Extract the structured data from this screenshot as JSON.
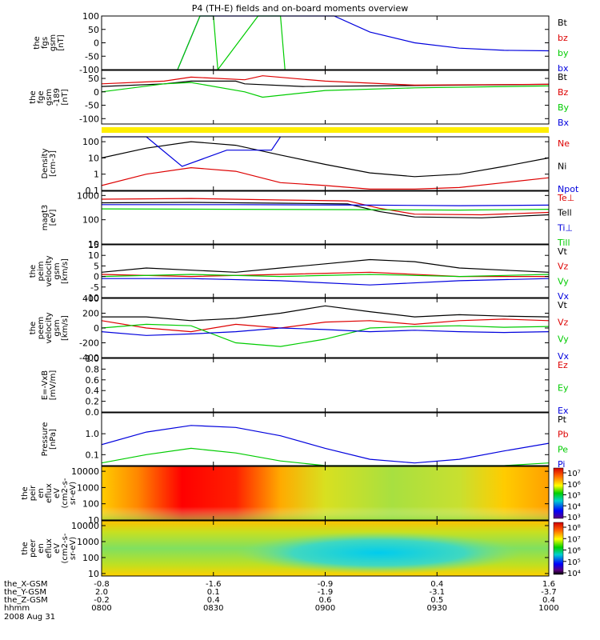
{
  "title": "P4 (TH-E) fields and on-board moments overview",
  "colors": {
    "black": "#000000",
    "red": "#dd0000",
    "green": "#00cc00",
    "blue": "#0000dd",
    "yellow": "#ffee00"
  },
  "chart_data": [
    {
      "type": "line",
      "name": "fgs",
      "ylabel_lines": [
        "the",
        "fgs",
        "gsm",
        "[nT]"
      ],
      "ylim": [
        -100,
        100
      ],
      "yticks": [
        "100",
        "50",
        "0",
        "-50",
        "-100"
      ],
      "legend": [
        {
          "label": "Bt",
          "color": "#000000"
        },
        {
          "label": "bz",
          "color": "#dd0000"
        },
        {
          "label": "by",
          "color": "#00cc00"
        },
        {
          "label": "bx",
          "color": "#0000dd"
        }
      ],
      "series": [
        {
          "name": "bx",
          "color": "#0000dd",
          "x": [
            0.17,
            0.22,
            0.4,
            0.45,
            0.52,
            0.6,
            0.7,
            0.8,
            0.9,
            1.0
          ],
          "y": [
            -100,
            100,
            100,
            100,
            100,
            40,
            0,
            -20,
            -28,
            -30
          ]
        },
        {
          "name": "by",
          "color": "#00cc00",
          "x": [
            0.17,
            0.22,
            0.25,
            0.26,
            0.35,
            0.4,
            0.41
          ],
          "y": [
            -100,
            100,
            100,
            -100,
            100,
            100,
            -100
          ]
        }
      ]
    },
    {
      "type": "line",
      "name": "fge",
      "ylabel_lines": [
        "the",
        "fge",
        "gsm",
        "-189",
        "[nT]"
      ],
      "ylim": [
        -120,
        80
      ],
      "yticks": [
        "50",
        "0",
        "-50",
        "-100"
      ],
      "legend": [
        {
          "label": "Bt",
          "color": "#000000"
        },
        {
          "label": "Bz",
          "color": "#dd0000"
        },
        {
          "label": "By",
          "color": "#00cc00"
        },
        {
          "label": "Bx",
          "color": "#0000dd"
        }
      ],
      "series": [
        {
          "name": "Bt",
          "color": "#000000",
          "x": [
            0.0,
            0.14,
            0.2,
            0.3,
            0.32,
            0.45,
            0.6,
            0.8,
            1.0
          ],
          "y": [
            20,
            30,
            40,
            40,
            30,
            20,
            22,
            25,
            28
          ]
        },
        {
          "name": "Bz",
          "color": "#dd0000",
          "x": [
            0.0,
            0.14,
            0.2,
            0.32,
            0.36,
            0.5,
            0.7,
            1.0
          ],
          "y": [
            30,
            40,
            55,
            45,
            60,
            40,
            25,
            28
          ]
        },
        {
          "name": "By",
          "color": "#00cc00",
          "x": [
            0.0,
            0.14,
            0.2,
            0.32,
            0.36,
            0.5,
            0.7,
            1.0
          ],
          "y": [
            0,
            30,
            35,
            0,
            -20,
            5,
            15,
            22
          ]
        }
      ]
    },
    {
      "type": "line",
      "name": "density",
      "ylabel_lines": [
        "Density",
        "[cm-3]"
      ],
      "yscale": "log",
      "ylim": [
        0.1,
        200
      ],
      "yticks": [
        "100",
        "10",
        "1",
        "0.1"
      ],
      "legend": [
        {
          "label": "Ne",
          "color": "#dd0000"
        },
        {
          "label": "Ni",
          "color": "#000000"
        },
        {
          "label": "Npot",
          "color": "#0000dd"
        }
      ],
      "series": [
        {
          "name": "Ni",
          "color": "#000000",
          "x": [
            0.0,
            0.1,
            0.2,
            0.3,
            0.4,
            0.5,
            0.6,
            0.7,
            0.8,
            0.9,
            1.0
          ],
          "y": [
            10,
            40,
            100,
            60,
            15,
            4,
            1.2,
            0.7,
            1.0,
            3,
            10
          ]
        },
        {
          "name": "Ne",
          "color": "#dd0000",
          "x": [
            0.0,
            0.1,
            0.2,
            0.3,
            0.4,
            0.5,
            0.6,
            0.7,
            0.8,
            0.9,
            1.0
          ],
          "y": [
            0.2,
            1.0,
            2.5,
            1.5,
            0.3,
            0.2,
            0.12,
            0.12,
            0.15,
            0.3,
            0.6
          ]
        },
        {
          "name": "Npot",
          "color": "#0000dd",
          "x": [
            0.0,
            0.1,
            0.18,
            0.28,
            0.38,
            0.4
          ],
          "y": [
            200,
            200,
            3,
            30,
            30,
            200
          ]
        }
      ]
    },
    {
      "type": "line",
      "name": "temperature",
      "ylabel_lines": [
        "magt3",
        "[eV]"
      ],
      "yscale": "log",
      "ylim": [
        10,
        1500
      ],
      "yticks": [
        "1000",
        "100",
        "10"
      ],
      "legend": [
        {
          "label": "Te⊥",
          "color": "#dd0000"
        },
        {
          "label": "Tell",
          "color": "#000000"
        },
        {
          "label": "Ti⊥",
          "color": "#0000dd"
        },
        {
          "label": "Till",
          "color": "#00cc00"
        }
      ],
      "series": [
        {
          "name": "Te⊥",
          "color": "#dd0000",
          "x": [
            0.0,
            0.2,
            0.4,
            0.55,
            0.62,
            0.7,
            0.85,
            1.0
          ],
          "y": [
            700,
            750,
            650,
            600,
            300,
            170,
            160,
            200
          ]
        },
        {
          "name": "Tell",
          "color": "#000000",
          "x": [
            0.0,
            0.2,
            0.4,
            0.55,
            0.62,
            0.7,
            0.85,
            1.0
          ],
          "y": [
            500,
            520,
            480,
            450,
            220,
            130,
            120,
            160
          ]
        },
        {
          "name": "Ti⊥",
          "color": "#0000dd",
          "x": [
            0.0,
            0.3,
            0.6,
            0.8,
            1.0
          ],
          "y": [
            420,
            420,
            400,
            380,
            400
          ]
        },
        {
          "name": "Till",
          "color": "#00cc00",
          "x": [
            0.0,
            0.3,
            0.6,
            0.8,
            1.0
          ],
          "y": [
            280,
            270,
            260,
            250,
            270
          ]
        }
      ]
    },
    {
      "type": "line",
      "name": "peim-velocity",
      "ylabel_lines": [
        "the",
        "peim",
        "velocity",
        "gsm",
        "[km/s]"
      ],
      "ylim": [
        -10,
        15
      ],
      "yticks": [
        "15",
        "10",
        "5",
        "0",
        "-5",
        "-10"
      ],
      "legend": [
        {
          "label": "Vt",
          "color": "#000000"
        },
        {
          "label": "Vz",
          "color": "#dd0000"
        },
        {
          "label": "Vy",
          "color": "#00cc00"
        },
        {
          "label": "Vx",
          "color": "#0000dd"
        }
      ],
      "series": [
        {
          "name": "Vt",
          "color": "#000000",
          "x": [
            0.0,
            0.1,
            0.2,
            0.3,
            0.4,
            0.5,
            0.6,
            0.7,
            0.8,
            0.9,
            1.0
          ],
          "y": [
            2,
            4,
            3,
            2,
            4,
            6,
            8,
            7,
            4,
            3,
            2
          ]
        },
        {
          "name": "Vz",
          "color": "#dd0000",
          "x": [
            0.0,
            0.2,
            0.4,
            0.6,
            0.8,
            1.0
          ],
          "y": [
            1,
            0,
            1,
            2,
            0,
            0
          ]
        },
        {
          "name": "Vy",
          "color": "#00cc00",
          "x": [
            0.0,
            0.2,
            0.4,
            0.6,
            0.8,
            1.0
          ],
          "y": [
            0,
            1,
            0,
            1,
            0,
            1
          ]
        },
        {
          "name": "Vx",
          "color": "#0000dd",
          "x": [
            0.0,
            0.2,
            0.4,
            0.6,
            0.8,
            1.0
          ],
          "y": [
            -1,
            -1,
            -2,
            -4,
            -2,
            -1
          ]
        }
      ]
    },
    {
      "type": "line",
      "name": "peem-velocity",
      "ylabel_lines": [
        "the",
        "peem",
        "velocity",
        "gsm",
        "[km/s]"
      ],
      "ylim": [
        -400,
        400
      ],
      "yticks": [
        "400",
        "200",
        "0",
        "-200",
        "-400"
      ],
      "legend": [
        {
          "label": "Vt",
          "color": "#000000"
        },
        {
          "label": "Vz",
          "color": "#dd0000"
        },
        {
          "label": "Vy",
          "color": "#00cc00"
        },
        {
          "label": "Vx",
          "color": "#0000dd"
        }
      ],
      "series": [
        {
          "name": "Vt",
          "color": "#000000",
          "x": [
            0.0,
            0.1,
            0.2,
            0.3,
            0.4,
            0.5,
            0.6,
            0.7,
            0.8,
            0.9,
            1.0
          ],
          "y": [
            150,
            150,
            100,
            130,
            200,
            300,
            220,
            150,
            180,
            160,
            150
          ]
        },
        {
          "name": "Vz",
          "color": "#dd0000",
          "x": [
            0.0,
            0.1,
            0.2,
            0.3,
            0.4,
            0.5,
            0.6,
            0.7,
            0.8,
            0.9,
            1.0
          ],
          "y": [
            100,
            0,
            -50,
            50,
            0,
            80,
            100,
            50,
            100,
            120,
            100
          ]
        },
        {
          "name": "Vy",
          "color": "#00cc00",
          "x": [
            0.0,
            0.1,
            0.2,
            0.3,
            0.4,
            0.5,
            0.6,
            0.7,
            0.8,
            0.9,
            1.0
          ],
          "y": [
            0,
            50,
            30,
            -200,
            -250,
            -150,
            0,
            20,
            30,
            10,
            20
          ]
        },
        {
          "name": "Vx",
          "color": "#0000dd",
          "x": [
            0.0,
            0.1,
            0.2,
            0.3,
            0.4,
            0.5,
            0.6,
            0.7,
            0.8,
            0.9,
            1.0
          ],
          "y": [
            -50,
            -100,
            -80,
            -50,
            0,
            -20,
            -50,
            -30,
            -50,
            -60,
            -50
          ]
        }
      ]
    },
    {
      "type": "line",
      "name": "efield",
      "ylabel_lines": [
        "E=-VxB",
        "[mV/m]"
      ],
      "ylim": [
        0.0,
        1.0
      ],
      "yticks": [
        "1.0",
        "0.8",
        "0.6",
        "0.4",
        "0.2",
        "0.0"
      ],
      "legend": [
        {
          "label": "Ez",
          "color": "#dd0000"
        },
        {
          "label": "Ey",
          "color": "#00cc00"
        },
        {
          "label": "Ex",
          "color": "#0000dd"
        }
      ],
      "series": []
    },
    {
      "type": "line",
      "name": "pressure",
      "ylabel_lines": [
        "Pressure",
        "[nPa]"
      ],
      "yscale": "log",
      "ylim": [
        0.03,
        10
      ],
      "yticks": [
        "1.0",
        "0.1"
      ],
      "legend": [
        {
          "label": "Pt",
          "color": "#000000"
        },
        {
          "label": "Pb",
          "color": "#dd0000"
        },
        {
          "label": "Pe",
          "color": "#00cc00"
        },
        {
          "label": "Pi",
          "color": "#0000dd"
        }
      ],
      "series": [
        {
          "name": "Pi",
          "color": "#0000dd",
          "x": [
            0.0,
            0.1,
            0.2,
            0.3,
            0.4,
            0.5,
            0.6,
            0.7,
            0.8,
            0.9,
            1.0
          ],
          "y": [
            0.3,
            1.2,
            2.5,
            2.0,
            0.8,
            0.2,
            0.06,
            0.04,
            0.06,
            0.15,
            0.35
          ]
        },
        {
          "name": "Pe",
          "color": "#00cc00",
          "x": [
            0.0,
            0.1,
            0.2,
            0.3,
            0.4,
            0.5,
            0.6,
            0.7,
            0.8,
            0.9,
            1.0
          ],
          "y": [
            0.04,
            0.1,
            0.2,
            0.12,
            0.05,
            0.03,
            0.03,
            0.03,
            0.03,
            0.03,
            0.04
          ]
        }
      ]
    },
    {
      "type": "heatmap",
      "name": "peir-energy-flux",
      "ylabel_lines": [
        "the",
        "peir",
        "en",
        "eflux",
        "eV",
        "(cm2-s-",
        "sr-eV)"
      ],
      "ylim": [
        10,
        20000
      ],
      "yticks": [
        "10000",
        "1000",
        "100",
        "10"
      ],
      "colorbar_ticks": [
        "10⁷",
        "10⁶",
        "10⁵",
        "10⁴",
        "10³"
      ]
    },
    {
      "type": "heatmap",
      "name": "peer-energy-flux",
      "ylabel_lines": [
        "the",
        "peer",
        "en",
        "eflux",
        "eV",
        "(cm2-s-",
        "sr-eV)"
      ],
      "ylim": [
        7,
        20000
      ],
      "yticks": [
        "10000",
        "1000",
        "100",
        "10"
      ],
      "colorbar_ticks": [
        "10⁸",
        "10⁷",
        "10⁶",
        "10⁵",
        "10⁴"
      ]
    }
  ],
  "x_axis": {
    "row_labels": [
      "the_X-GSM",
      "the_Y-GSM",
      "the_Z-GSM",
      "hhmm",
      "2008 Aug 31"
    ],
    "columns": [
      {
        "values": [
          "-0.8",
          "2.0",
          "-0.2",
          "0800"
        ]
      },
      {
        "values": [
          "-1.6",
          "0.1",
          "0.4",
          "0830"
        ]
      },
      {
        "values": [
          "-0.9",
          "-1.9",
          "0.6",
          "0900"
        ]
      },
      {
        "values": [
          "0.4",
          "-3.1",
          "0.5",
          "0930"
        ]
      },
      {
        "values": [
          "1.6",
          "-3.7",
          "0.4",
          "1000"
        ]
      }
    ]
  }
}
